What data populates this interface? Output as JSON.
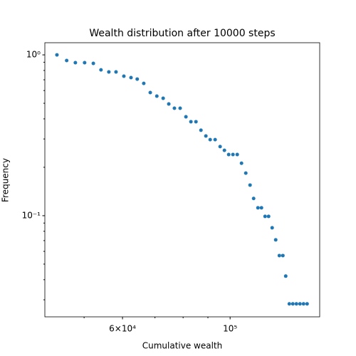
{
  "chart_data": {
    "type": "scatter",
    "title": "Wealth distribution after 10000 steps",
    "xlabel": "Cumulative wealth",
    "ylabel": "Frequency",
    "xscale": "log",
    "yscale": "log",
    "xlim": [
      41500,
      153000
    ],
    "ylim": [
      0.0235,
      1.19
    ],
    "xticks": [
      {
        "value": 60000,
        "label": "6×10⁴"
      },
      {
        "value": 100000,
        "label": "10⁵"
      }
    ],
    "xminorticks": [
      50000,
      70000,
      80000,
      90000
    ],
    "yticks": [
      {
        "value": 0.1,
        "label": "10⁻¹"
      },
      {
        "value": 1,
        "label": "10⁰"
      }
    ],
    "yminorticks": [
      0.03,
      0.04,
      0.05,
      0.06,
      0.07,
      0.08,
      0.09,
      0.2,
      0.3,
      0.4,
      0.5,
      0.6,
      0.7,
      0.8,
      0.9
    ],
    "series": [
      {
        "color": "#1f77b4",
        "x": [
          43950,
          46030,
          47970,
          50120,
          52240,
          54170,
          56230,
          58180,
          60390,
          62470,
          64340,
          66370,
          68450,
          70620,
          72770,
          74740,
          76770,
          78880,
          81080,
          83020,
          85030,
          87070,
          89130,
          90970,
          93140,
          95370,
          97330,
          99330,
          101360,
          103440,
          105560,
          107730,
          109930,
          111810,
          114120,
          116050,
          118060,
          120050,
          122090,
          124170,
          126340,
          128470,
          130210,
          132450,
          134690,
          136990,
          139330,
          141710,
          144130
        ],
        "values": [
          1.0,
          0.922,
          0.894,
          0.894,
          0.885,
          0.807,
          0.783,
          0.783,
          0.737,
          0.722,
          0.707,
          0.665,
          0.583,
          0.554,
          0.537,
          0.495,
          0.466,
          0.466,
          0.412,
          0.384,
          0.384,
          0.34,
          0.313,
          0.297,
          0.297,
          0.269,
          0.255,
          0.24,
          0.24,
          0.24,
          0.212,
          0.184,
          0.155,
          0.128,
          0.112,
          0.112,
          0.099,
          0.099,
          0.0841,
          0.0708,
          0.0565,
          0.0565,
          0.0421,
          0.0283,
          0.0283,
          0.0283,
          0.0283,
          0.0283,
          0.0283
        ]
      }
    ]
  }
}
